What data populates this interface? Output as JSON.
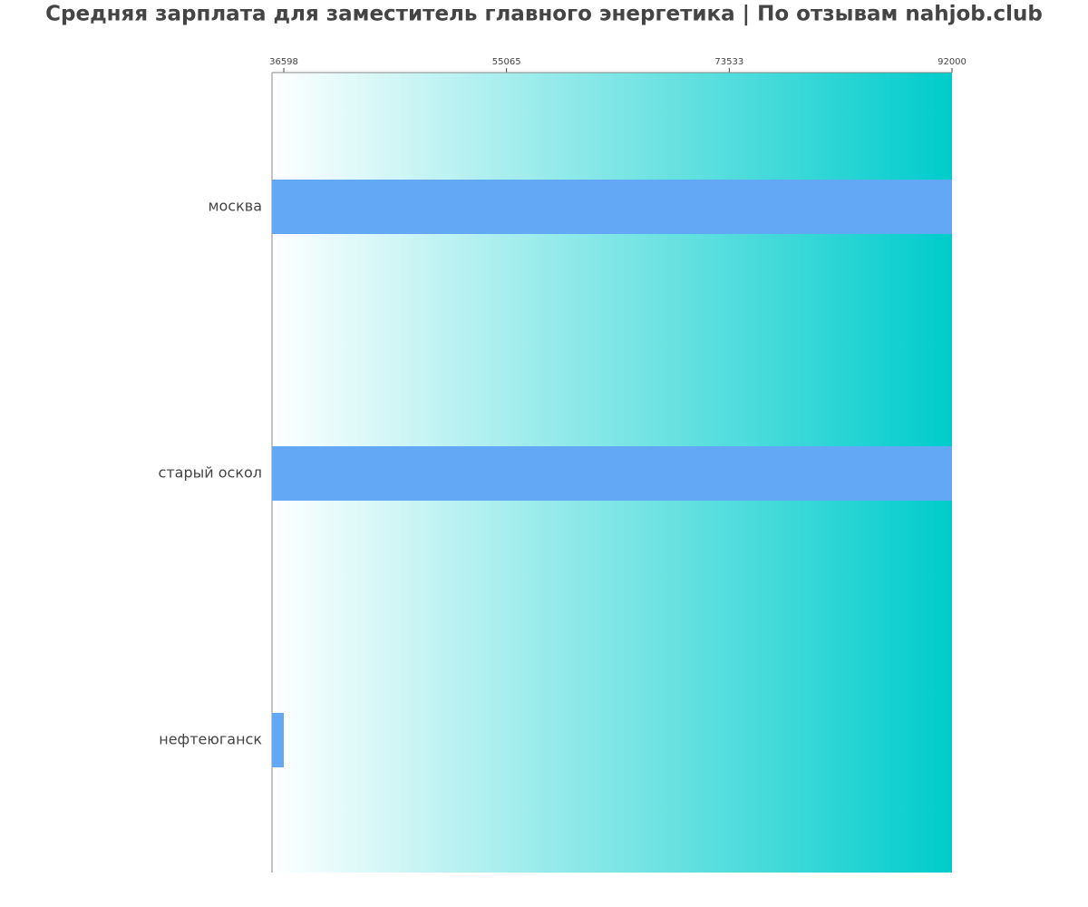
{
  "chart_data": {
    "type": "barh",
    "title": "Средняя зарплата для заместитель главного энергетика | По отзывам nahjob.club",
    "categories": [
      "москва",
      "старый оскол",
      "нефтеюганск"
    ],
    "values": [
      92000,
      92000,
      36598
    ],
    "color": "#62a8f4",
    "xlim": [
      35620,
      92000
    ],
    "xticks": [
      36598,
      55065,
      73533,
      92000
    ],
    "background_gradient": [
      "#ffffff",
      "#00cccc"
    ]
  }
}
